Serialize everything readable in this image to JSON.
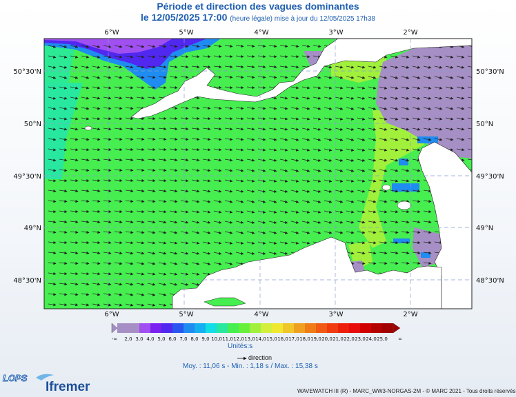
{
  "title": "Période et direction des vagues dominantes",
  "subtitle": {
    "date": "le 12/05/2025 17:00",
    "note": "(heure légale) mise à jour du 12/05/2025 17h38"
  },
  "longitudes": [
    "6°W",
    "5°W",
    "4°W",
    "3°W",
    "2°W"
  ],
  "latitudes": [
    "50°30'N",
    "50°N",
    "49°30'N",
    "49°N",
    "48°30'N"
  ],
  "colorbar": {
    "min_label": "-∞",
    "max_label": "∞",
    "ticks": [
      "2,0",
      "3,0",
      "4,0",
      "5,0",
      "6,0",
      "7,0",
      "8,0",
      "9,0",
      "10,0",
      "11,0",
      "12,0",
      "13,0",
      "14,0",
      "15,0",
      "16,0",
      "17,0",
      "18,0",
      "19,0",
      "20,0",
      "21,0",
      "22,0",
      "23,0",
      "24,0",
      "25,0"
    ],
    "colors": [
      "#a58fc4",
      "#a78fc6",
      "#a050f0",
      "#7a20f0",
      "#5028f0",
      "#2a55f0",
      "#1e8cf0",
      "#14b0f0",
      "#14dde6",
      "#28e8a0",
      "#46ee50",
      "#66f03c",
      "#a0f03c",
      "#d4ee3c",
      "#f0e830",
      "#f0c628",
      "#f0a020",
      "#f07c18",
      "#f05a14",
      "#f03a10",
      "#ee1e0c",
      "#e80c0c",
      "#d00000",
      "#b40000",
      "#a00000"
    ],
    "unit": "Unités:s"
  },
  "legend": {
    "direction": "direction"
  },
  "stats": "Moy. : 11,06 s  -  Min. : 1,18 s / Max. : 15,38 s",
  "branding": {
    "lops": "LOPS",
    "ifremer": "Ifremer"
  },
  "credits": "WAVEWATCH III (R) - MARC_WW3-NORGAS-2M - © MARC 2021 - Tous droits réservés",
  "colors": {
    "title": "#1f5fb0",
    "sea_main": "#46ee50",
    "land": "#ffffff"
  },
  "map_data": {
    "extent": {
      "lon_min": -6.85,
      "lon_max": -1.2,
      "lat_min": 48.12,
      "lat_max": 50.82
    },
    "dominant_period_s": 12.5,
    "arrow_direction": "toward east-southeast"
  }
}
